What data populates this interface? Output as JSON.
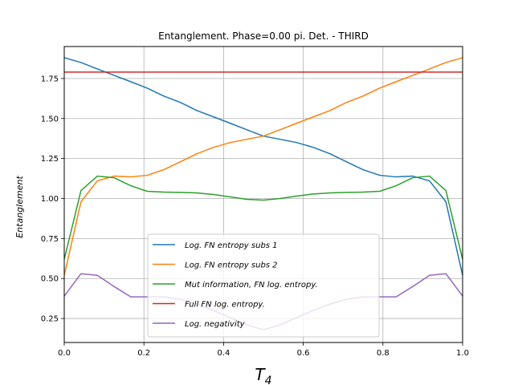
{
  "chart_data": {
    "type": "line",
    "title": "Entanglement. Phase=0.00 pi. Det. - THIRD",
    "xlabel": "T_4",
    "ylabel": "Entanglement",
    "xlim": [
      0.0,
      1.0
    ],
    "ylim": [
      0.1,
      1.95
    ],
    "x_ticks": [
      "0.0",
      "0.2",
      "0.4",
      "0.6",
      "0.8",
      "1.0"
    ],
    "y_ticks": [
      "0.25",
      "0.50",
      "0.75",
      "1.00",
      "1.25",
      "1.50",
      "1.75"
    ],
    "grid": true,
    "legend_position": "lower center",
    "series": [
      {
        "name": "Log. FN entropy subs 1",
        "color": "#1f77b4",
        "x": [
          0.0,
          0.042,
          0.083,
          0.125,
          0.167,
          0.208,
          0.25,
          0.292,
          0.333,
          0.375,
          0.417,
          0.458,
          0.5,
          0.542,
          0.583,
          0.625,
          0.667,
          0.708,
          0.75,
          0.792,
          0.833,
          0.875,
          0.917,
          0.958,
          1.0
        ],
        "y": [
          1.88,
          1.85,
          1.81,
          1.77,
          1.73,
          1.69,
          1.64,
          1.6,
          1.55,
          1.51,
          1.47,
          1.43,
          1.39,
          1.37,
          1.35,
          1.32,
          1.28,
          1.23,
          1.18,
          1.145,
          1.135,
          1.14,
          1.11,
          0.98,
          0.52
        ]
      },
      {
        "name": "Log. FN entropy subs 2",
        "color": "#ff7f0e",
        "x": [
          0.0,
          0.042,
          0.083,
          0.125,
          0.167,
          0.208,
          0.25,
          0.292,
          0.333,
          0.375,
          0.417,
          0.458,
          0.5,
          0.542,
          0.583,
          0.625,
          0.667,
          0.708,
          0.75,
          0.792,
          0.833,
          0.875,
          0.917,
          0.958,
          1.0
        ],
        "y": [
          0.52,
          0.98,
          1.11,
          1.14,
          1.135,
          1.145,
          1.18,
          1.23,
          1.28,
          1.32,
          1.35,
          1.37,
          1.39,
          1.43,
          1.47,
          1.51,
          1.55,
          1.6,
          1.64,
          1.69,
          1.73,
          1.77,
          1.81,
          1.85,
          1.88
        ]
      },
      {
        "name": "Mut information, FN log. entropy.",
        "color": "#2ca02c",
        "x": [
          0.0,
          0.042,
          0.083,
          0.125,
          0.167,
          0.208,
          0.25,
          0.292,
          0.333,
          0.375,
          0.417,
          0.458,
          0.5,
          0.542,
          0.583,
          0.625,
          0.667,
          0.708,
          0.75,
          0.792,
          0.833,
          0.875,
          0.917,
          0.958,
          1.0
        ],
        "y": [
          0.62,
          1.05,
          1.14,
          1.13,
          1.08,
          1.045,
          1.04,
          1.038,
          1.035,
          1.025,
          1.01,
          0.995,
          0.99,
          1.0,
          1.015,
          1.028,
          1.035,
          1.038,
          1.04,
          1.045,
          1.08,
          1.13,
          1.14,
          1.05,
          0.62
        ]
      },
      {
        "name": "Full FN log. entropy.",
        "color": "#d62728",
        "x": [
          0.0,
          1.0
        ],
        "y": [
          1.79,
          1.79
        ]
      },
      {
        "name": "Log. negativity",
        "color": "#9467bd",
        "x": [
          0.0,
          0.042,
          0.083,
          0.125,
          0.167,
          0.208,
          0.25,
          0.292,
          0.333,
          0.375,
          0.417,
          0.458,
          0.5,
          0.542,
          0.583,
          0.625,
          0.667,
          0.708,
          0.75,
          0.792,
          0.833,
          0.875,
          0.917,
          0.958,
          1.0
        ],
        "y": [
          0.39,
          0.53,
          0.52,
          0.45,
          0.385,
          0.385,
          0.385,
          0.37,
          0.34,
          0.3,
          0.255,
          0.21,
          0.18,
          0.21,
          0.255,
          0.3,
          0.34,
          0.37,
          0.385,
          0.385,
          0.385,
          0.45,
          0.52,
          0.53,
          0.39
        ]
      }
    ]
  }
}
